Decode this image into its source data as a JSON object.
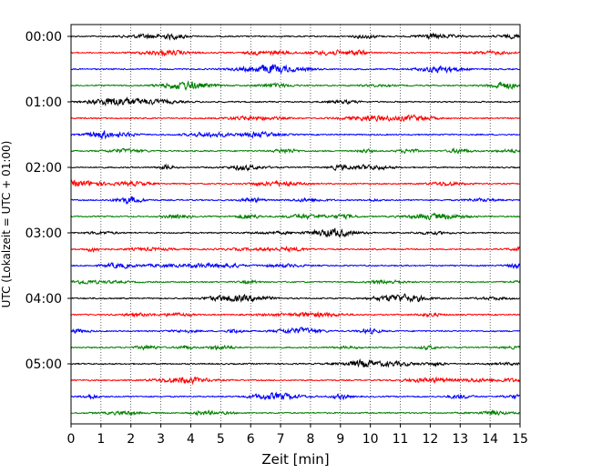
{
  "chart_data": {
    "type": "line",
    "subtype": "helicorder seismogram",
    "xlabel": "Zeit  [min]",
    "ylabel": "UTC (Lokalzeit = UTC + 01:00)",
    "xlim": [
      0,
      15
    ],
    "x_ticks": [
      "0",
      "1",
      "2",
      "3",
      "4",
      "5",
      "6",
      "7",
      "8",
      "9",
      "10",
      "11",
      "12",
      "13",
      "14",
      "15"
    ],
    "y_tick_labels": [
      "00:00",
      "01:00",
      "02:00",
      "03:00",
      "04:00",
      "05:00"
    ],
    "trace_interval_minutes": 15,
    "trace_count": 24,
    "trace_colors": [
      "#000000",
      "#ff0000",
      "#0000ff",
      "#008000"
    ],
    "grid": "vertical dotted lines at each minute"
  }
}
